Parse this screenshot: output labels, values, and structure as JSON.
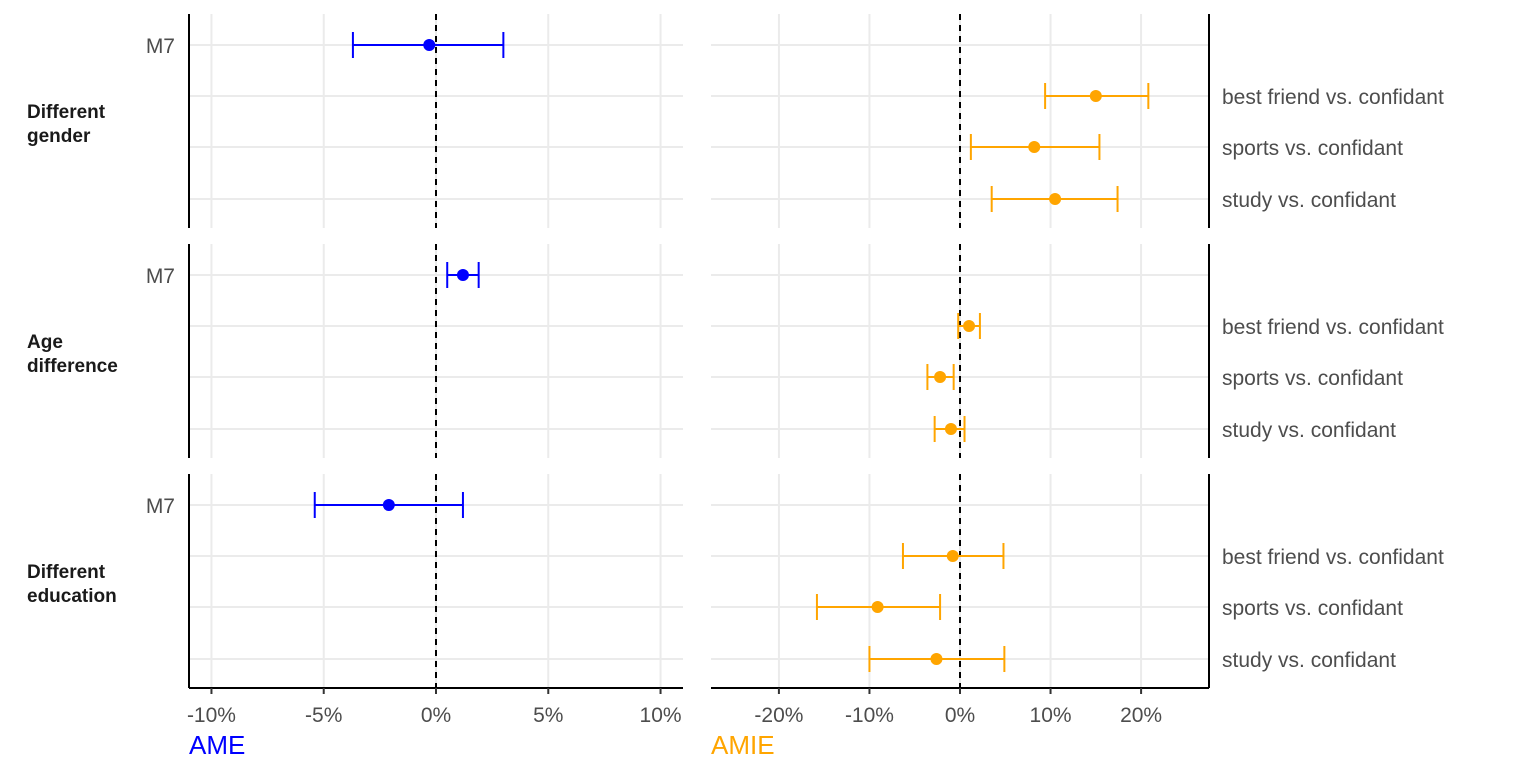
{
  "chart_data": {
    "type": "forest",
    "colors": {
      "ame": "#0000FF",
      "amie": "#FFA500",
      "grid": "#EBEBEB",
      "text": "#4D4D4D"
    },
    "panels": [
      {
        "id": "ame",
        "axis_title": "AME",
        "xlim": [
          -11,
          11
        ],
        "xticks": [
          -10,
          -5,
          0,
          5,
          10
        ],
        "xtick_labels": [
          "-10%",
          "-5%",
          "0%",
          "5%",
          "10%"
        ],
        "rows": [
          "M7",
          "",
          "",
          ""
        ],
        "row_labels_side": "left"
      },
      {
        "id": "amie",
        "axis_title": "AMIE",
        "xlim": [
          -27.5,
          27.5
        ],
        "xticks": [
          -20,
          -10,
          0,
          10,
          20
        ],
        "xtick_labels": [
          "-20%",
          "-10%",
          "0%",
          "10%",
          "20%"
        ],
        "rows": [
          "",
          "best friend vs. confidant",
          "sports vs. confidant",
          "study vs. confidant"
        ],
        "row_labels_side": "right"
      }
    ],
    "facets": [
      {
        "label_lines": [
          "Different",
          "gender"
        ],
        "ame": [
          {
            "row": 0,
            "label": "M7",
            "estimate": -0.3,
            "lower": -3.7,
            "upper": 3.0
          }
        ],
        "amie": [
          {
            "row": 1,
            "label": "best friend vs. confidant",
            "estimate": 15.0,
            "lower": 9.4,
            "upper": 20.8
          },
          {
            "row": 2,
            "label": "sports vs. confidant",
            "estimate": 8.2,
            "lower": 1.2,
            "upper": 15.4
          },
          {
            "row": 3,
            "label": "study vs. confidant",
            "estimate": 10.5,
            "lower": 3.5,
            "upper": 17.4
          }
        ]
      },
      {
        "label_lines": [
          "Age",
          "difference"
        ],
        "ame": [
          {
            "row": 0,
            "label": "M7",
            "estimate": 1.2,
            "lower": 0.5,
            "upper": 1.9
          }
        ],
        "amie": [
          {
            "row": 1,
            "label": "best friend vs. confidant",
            "estimate": 1.0,
            "lower": -0.2,
            "upper": 2.2
          },
          {
            "row": 2,
            "label": "sports vs. confidant",
            "estimate": -2.2,
            "lower": -3.6,
            "upper": -0.7
          },
          {
            "row": 3,
            "label": "study vs. confidant",
            "estimate": -1.0,
            "lower": -2.8,
            "upper": 0.5
          }
        ]
      },
      {
        "label_lines": [
          "Different",
          "education"
        ],
        "ame": [
          {
            "row": 0,
            "label": "M7",
            "estimate": -2.1,
            "lower": -5.4,
            "upper": 1.2
          }
        ],
        "amie": [
          {
            "row": 1,
            "label": "best friend vs. confidant",
            "estimate": -0.8,
            "lower": -6.3,
            "upper": 4.8
          },
          {
            "row": 2,
            "label": "sports vs. confidant",
            "estimate": -9.1,
            "lower": -15.8,
            "upper": -2.2
          },
          {
            "row": 3,
            "label": "study vs. confidant",
            "estimate": -2.6,
            "lower": -10.0,
            "upper": 4.9
          }
        ]
      }
    ]
  }
}
